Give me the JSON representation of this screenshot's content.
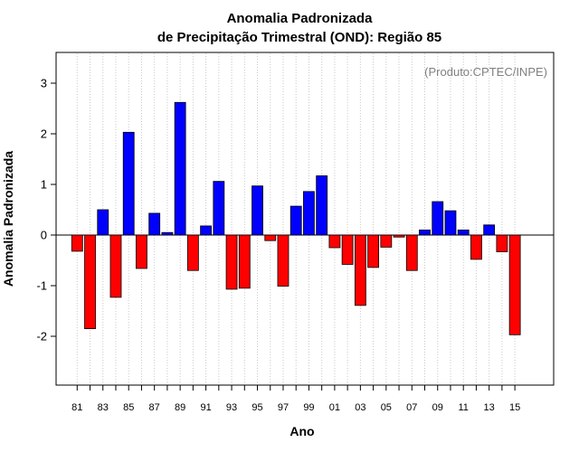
{
  "chart_data": {
    "type": "bar",
    "title_line1": "Anomalia Padronizada",
    "title_line2": "de Precipitação Trimestral (OND): Região 85",
    "xlabel": "Ano",
    "ylabel": "Anomalia Padronizada",
    "credit": "(Produto:CPTEC/INPE)",
    "ylim": [
      -3,
      3.6
    ],
    "yticks": [
      -2,
      -1,
      0,
      1,
      2,
      3
    ],
    "ytick_labels": [
      "-2",
      "-1",
      "0",
      "1",
      "2",
      "3"
    ],
    "grid": "vertical dotted, one per year",
    "xtick_labels": [
      "81",
      "83",
      "85",
      "87",
      "89",
      "91",
      "93",
      "95",
      "97",
      "99",
      "01",
      "03",
      "05",
      "07",
      "09",
      "11",
      "13",
      "15"
    ],
    "categories": [
      "1981",
      "1982",
      "1983",
      "1984",
      "1985",
      "1986",
      "1987",
      "1988",
      "1989",
      "1990",
      "1991",
      "1992",
      "1993",
      "1994",
      "1995",
      "1996",
      "1997",
      "1998",
      "1999",
      "2000",
      "2001",
      "2002",
      "2003",
      "2004",
      "2005",
      "2006",
      "2007",
      "2008",
      "2009",
      "2010",
      "2011",
      "2012",
      "2013",
      "2014",
      "2015"
    ],
    "values": [
      -0.32,
      -1.85,
      0.5,
      -1.23,
      2.03,
      -0.66,
      0.43,
      0.05,
      2.62,
      -0.7,
      0.18,
      1.06,
      -1.07,
      -1.05,
      0.97,
      -0.11,
      -1.01,
      0.57,
      0.86,
      1.17,
      -0.25,
      -0.58,
      -1.39,
      -0.64,
      -0.24,
      -0.04,
      -0.7,
      0.1,
      0.66,
      0.48,
      0.1,
      -0.48,
      0.2,
      -0.33,
      -1.97
    ],
    "colors": {
      "positive": "#0000ff",
      "negative": "#ff0000",
      "grid": "#c8c8c8"
    }
  }
}
